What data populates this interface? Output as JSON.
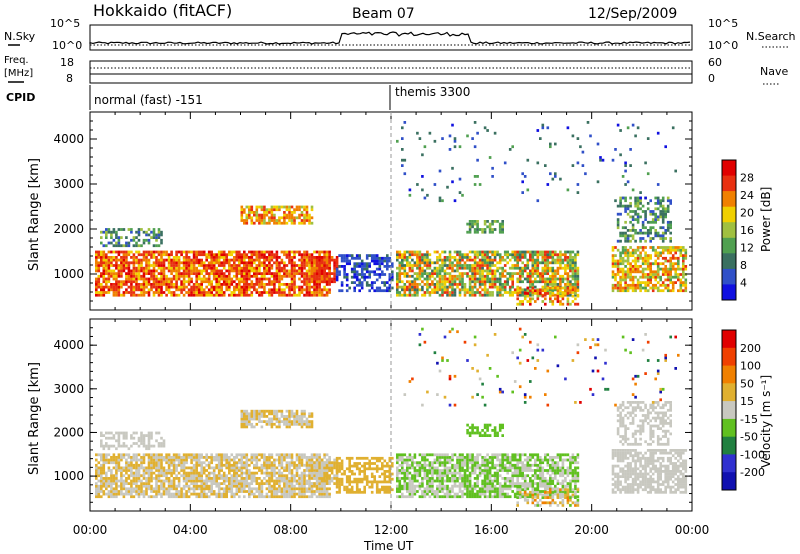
{
  "header": {
    "station": "Hokkaido (fitACF)",
    "beam": "Beam 07",
    "date": "12/Sep/2009"
  },
  "summary_panel": {
    "nsky_label": "N.Sky",
    "nsky_ticks": [
      "10^5",
      "10^0"
    ],
    "nsearch_label": "N.Search",
    "freq_label": "Freq.",
    "freq_unit": "[MHz]",
    "freq_ticks": [
      "18",
      "8"
    ],
    "nave_ticks": [
      "60",
      "0"
    ],
    "nave_label": "Nave",
    "cpid_label": "CPID",
    "cpid_modes": [
      "normal (fast) -151",
      "themis 3300"
    ]
  },
  "colors": {
    "power_scale": [
      "#1010e0",
      "#3050c8",
      "#3a7060",
      "#50a050",
      "#a0c040",
      "#f0d000",
      "#f08000",
      "#e83010",
      "#e00000"
    ],
    "velocity_scale": [
      "#1010b0",
      "#3030d0",
      "#208040",
      "#60c020",
      "#c8c8c0",
      "#e0b030",
      "#f08000",
      "#f04000",
      "#e00000"
    ]
  },
  "chart_data": [
    {
      "type": "heatmap",
      "panel": "power",
      "ylabel": "Slant Range [km]",
      "xlabel": "Time UT",
      "yticks": [
        "1000",
        "2000",
        "3000",
        "4000"
      ],
      "ylim": [
        200,
        4600
      ],
      "xticks": [
        "00:00",
        "04:00",
        "08:00",
        "12:00",
        "16:00",
        "20:00",
        "00:00"
      ],
      "xlim_hours": [
        0,
        24
      ],
      "colorbar_label": "Power [dB]",
      "colorbar_ticks": [
        "28",
        "24",
        "20",
        "16",
        "12",
        "8",
        "4"
      ]
    },
    {
      "type": "heatmap",
      "panel": "velocity",
      "ylabel": "Slant Range [km]",
      "xlabel": "Time UT",
      "yticks": [
        "1000",
        "2000",
        "3000",
        "4000"
      ],
      "ylim": [
        200,
        4600
      ],
      "xticks": [
        "00:00",
        "04:00",
        "08:00",
        "12:00",
        "16:00",
        "20:00",
        "00:00"
      ],
      "xlim_hours": [
        0,
        24
      ],
      "colorbar_label": "Velocity [m s⁻¹]",
      "colorbar_ticks": [
        "200",
        "100",
        "50",
        "15",
        "-15",
        "-50",
        "-100",
        "-200"
      ]
    }
  ]
}
